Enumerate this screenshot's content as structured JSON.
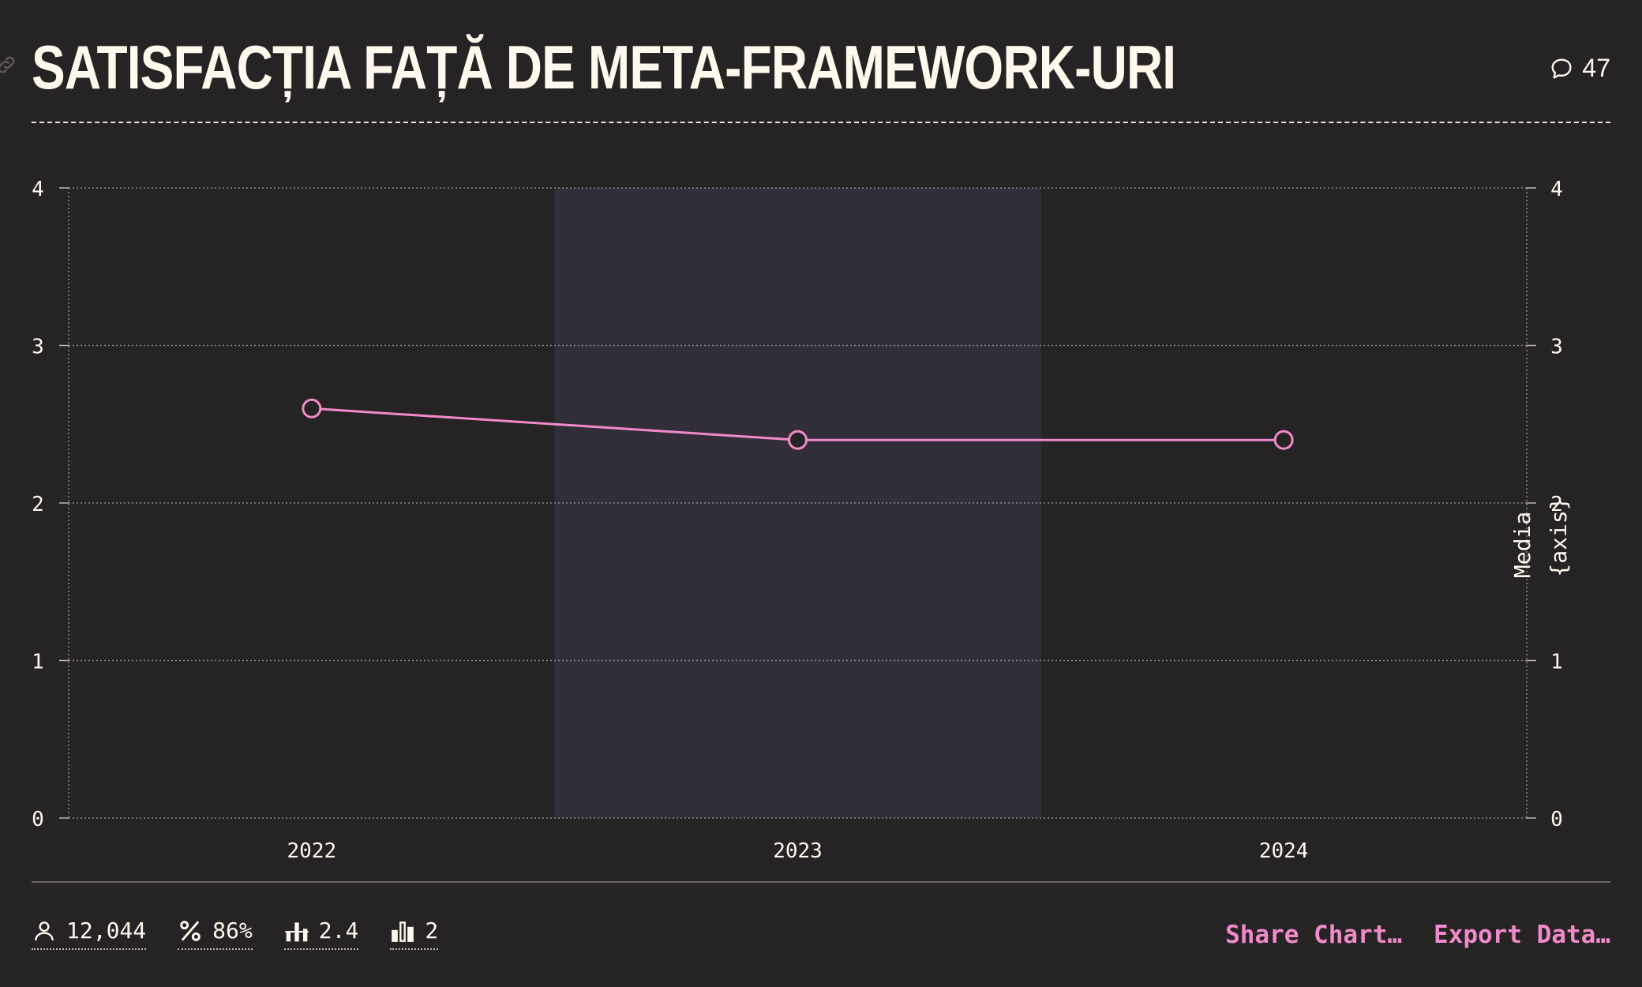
{
  "header": {
    "title": "Satisfacția față de meta-framework-uri",
    "comments_count": "47"
  },
  "colors": {
    "background": "#252324",
    "line": "#f08ac8",
    "highlight_band": "#322e39",
    "text": "#fff8ec"
  },
  "chart_data": {
    "type": "line",
    "x": [
      "2022",
      "2023",
      "2024"
    ],
    "series": [
      {
        "values": [
          2.6,
          2.4,
          2.4
        ]
      }
    ],
    "ylim": [
      0,
      4
    ],
    "yticks": [
      "0",
      "1",
      "2",
      "3",
      "4"
    ],
    "right_axis_label_lines": [
      "Media",
      "{axis}"
    ],
    "highlighted_category": "2023",
    "grid": true
  },
  "stats": [
    {
      "icon": "user-icon",
      "value": "12,044"
    },
    {
      "icon": "percent-icon",
      "value": "86%"
    },
    {
      "icon": "bar-average-icon",
      "value": "2.4"
    },
    {
      "icon": "bar-chart-icon",
      "value": "2"
    }
  ],
  "actions": {
    "share": "Share Chart…",
    "export": "Export Data…"
  }
}
